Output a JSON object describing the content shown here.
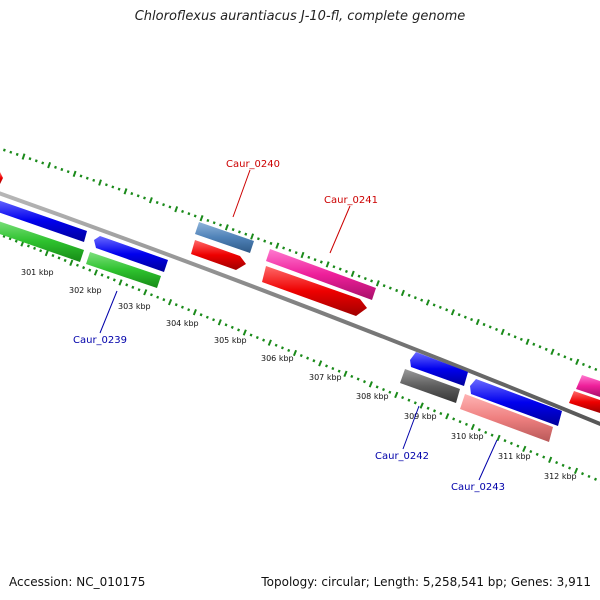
{
  "title": "Chloroflexus aurantiacus J-10-fl, complete genome",
  "footer": {
    "accession": "Accession: NC_010175",
    "summary": "Topology: circular; Length: 5,258,541 bp; Genes: 3,911"
  },
  "colors": {
    "backbone": "#8a8a8a",
    "tick_green": "#1a8a1a",
    "label_red": "#cc0000",
    "label_blue": "#0000aa"
  },
  "ticks": [
    "301 kbp",
    "302 kbp",
    "303 kbp",
    "304 kbp",
    "305 kbp",
    "306 kbp",
    "307 kbp",
    "308 kbp",
    "309 kbp",
    "310 kbp",
    "311 kbp",
    "312 kbp"
  ],
  "gene_labels": {
    "caur_0239": "Caur_0239",
    "caur_0240": "Caur_0240",
    "caur_0241": "Caur_0241",
    "caur_0242": "Caur_0242",
    "caur_0243": "Caur_0243"
  }
}
